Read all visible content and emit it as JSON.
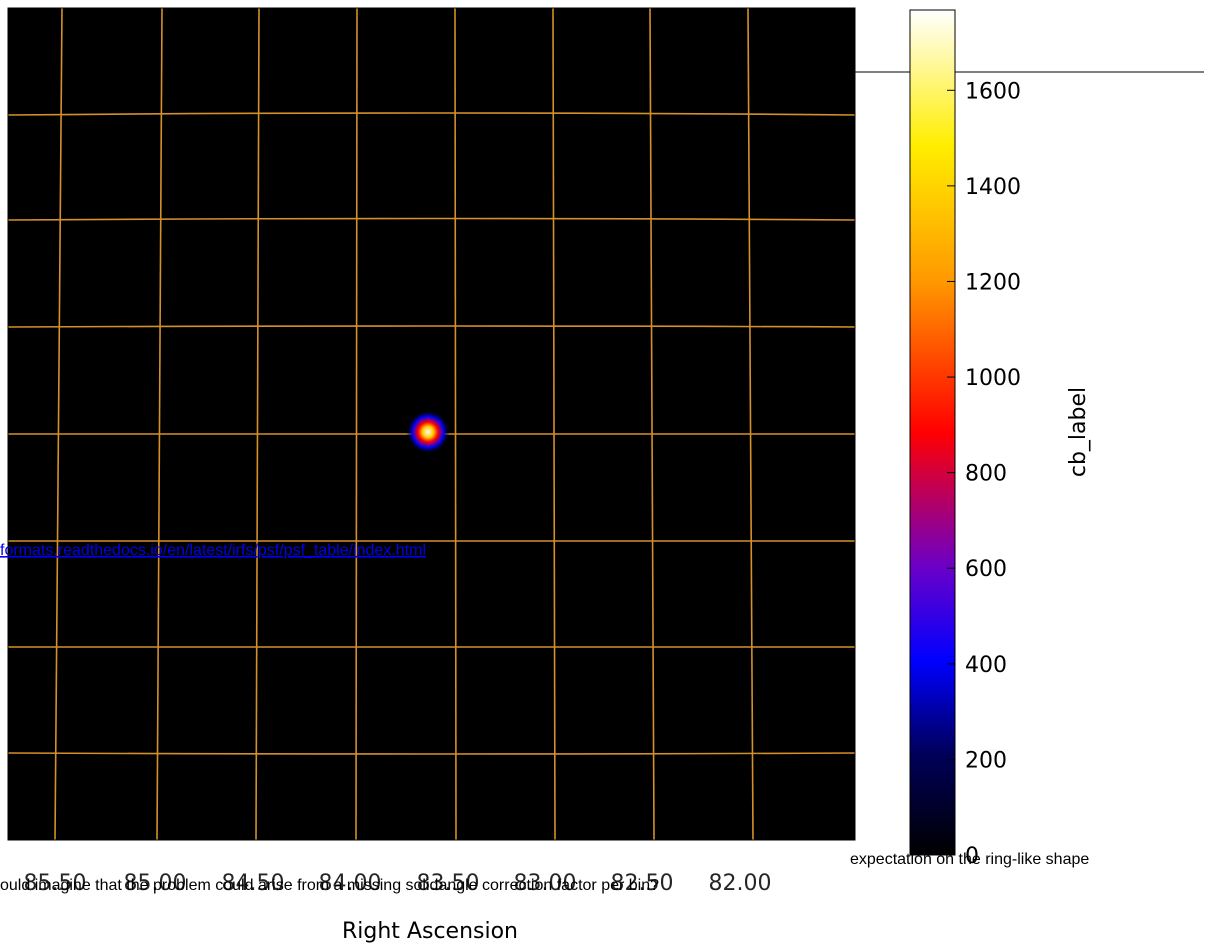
{
  "figure": {
    "colorbar": {
      "label": "cb_label",
      "lim": [
        0,
        1768
      ],
      "ticks": [
        0,
        200,
        400,
        600,
        800,
        1000,
        1200,
        1400,
        1600
      ]
    },
    "x_axis": {
      "label": "Right Ascension",
      "ticks": [
        "85.50",
        "85.00",
        "84.50",
        "84.00",
        "83.50",
        "83.00",
        "82.50",
        "82.00"
      ]
    }
  },
  "page": {
    "link": "formats.readthedocs.io/en/latest/irfs/psf/psf_table/index.html",
    "line_1": "expectation on the ring-like shape",
    "line_2": "ould imagine that the problem could arise from a missing solidangle correction factor per bin?"
  }
}
